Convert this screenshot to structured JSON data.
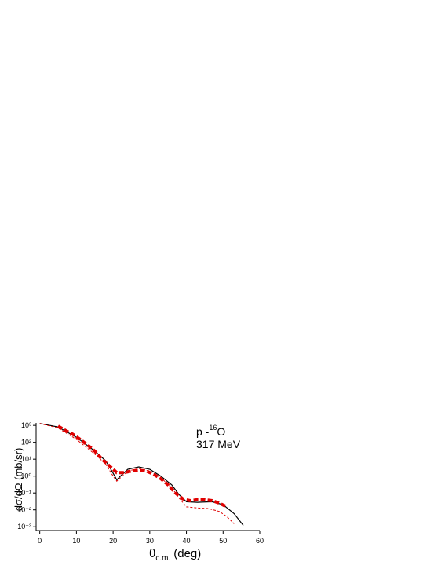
{
  "chart_data": {
    "type": "line",
    "x_label": {
      "symbol": "θ",
      "subscript": "c.m.",
      "unit": "(deg)"
    },
    "y_label": "dσ/dΩ (mb/sr)",
    "annotation": {
      "projectile": "p -",
      "mass": "16",
      "target": "O",
      "energy": "317 MeV"
    },
    "log_y": true,
    "xlim": [
      -1,
      60
    ],
    "ylim": [
      0.0006,
      1400
    ],
    "xticks": [
      0,
      10,
      20,
      30,
      40,
      50,
      60
    ],
    "yticks": [
      {
        "value": 1000,
        "label": "10³"
      },
      {
        "value": 100,
        "label": "10²"
      },
      {
        "value": 10,
        "label": "10¹"
      },
      {
        "value": 1,
        "label": "10⁰"
      },
      {
        "value": 0.1,
        "label": "10⁻¹"
      },
      {
        "value": 0.01,
        "label": "10⁻²"
      },
      {
        "value": 0.001,
        "label": "10⁻³"
      }
    ],
    "series": [
      {
        "color": "#000000",
        "style": "solid",
        "width": 1.2,
        "x": [
          0,
          5,
          10,
          15,
          18,
          20,
          21,
          22,
          24,
          27,
          30,
          33,
          36,
          38,
          40,
          43,
          47,
          50,
          53,
          55.5
        ],
        "values": [
          1300,
          800,
          200,
          30,
          8,
          1.5,
          0.6,
          1,
          2.5,
          3.5,
          2.5,
          1,
          0.3,
          0.08,
          0.03,
          0.028,
          0.03,
          0.02,
          0.006,
          0.0012
        ]
      },
      {
        "color": "#e00000",
        "style": "thin-dash",
        "width": 1,
        "x": [
          0,
          5,
          10,
          15,
          18,
          20,
          21,
          22,
          24,
          27,
          30,
          33,
          36,
          38,
          40,
          43,
          46,
          49,
          51,
          53
        ],
        "values": [
          1300,
          700,
          150,
          20,
          5,
          1,
          0.5,
          0.8,
          2,
          2.8,
          2,
          0.8,
          0.2,
          0.05,
          0.015,
          0.013,
          0.012,
          0.008,
          0.004,
          0.0015
        ]
      },
      {
        "color": "#e00000",
        "style": "thick-dash",
        "width": 4,
        "x": [
          5,
          7,
          9,
          11,
          13,
          15,
          17,
          19,
          21,
          23,
          25,
          27,
          29,
          31,
          33,
          35,
          37,
          39,
          41,
          43,
          45,
          47,
          49,
          51
        ],
        "values": [
          900,
          500,
          300,
          150,
          70,
          30,
          10,
          4,
          1.6,
          1.6,
          2,
          2.2,
          2,
          1.3,
          0.7,
          0.3,
          0.1,
          0.045,
          0.035,
          0.04,
          0.04,
          0.035,
          0.025,
          0.015
        ]
      }
    ]
  }
}
